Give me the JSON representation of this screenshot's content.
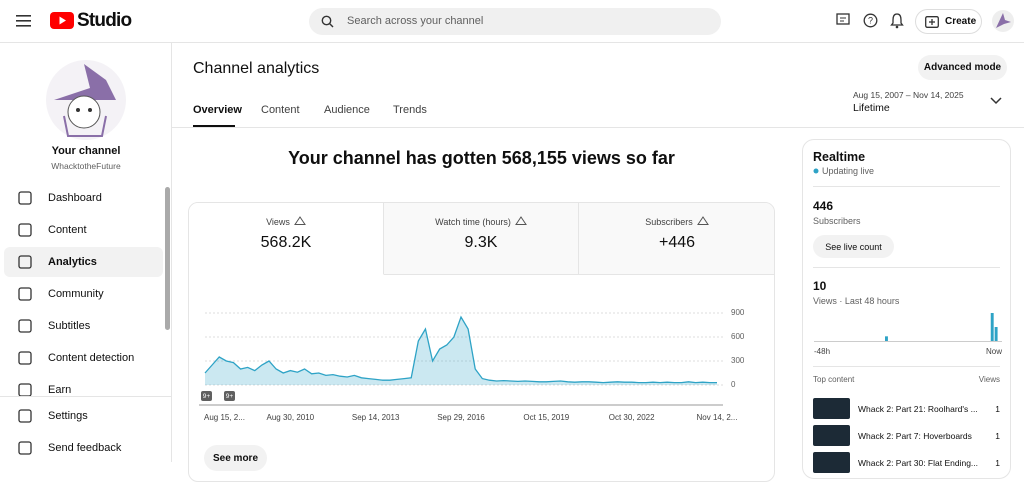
{
  "header": {
    "logo": "Studio",
    "search_placeholder": "Search across your channel",
    "create": "Create"
  },
  "sidebar": {
    "channel_title": "Your channel",
    "channel_name": "WhacktotheFuture",
    "nav": [
      "Dashboard",
      "Content",
      "Analytics",
      "Community",
      "Subtitles",
      "Content detection",
      "Earn"
    ],
    "footer_nav": [
      "Settings",
      "Send feedback"
    ]
  },
  "page": {
    "title": "Channel analytics",
    "advanced_mode": "Advanced mode",
    "tabs": [
      "Overview",
      "Content",
      "Audience",
      "Trends"
    ],
    "date_range": "Aug 15, 2007 – Nov 14, 2025",
    "period": "Lifetime",
    "headline": "Your channel has gotten 568,155 views so far",
    "metrics": [
      {
        "label": "Views",
        "value": "568.2K"
      },
      {
        "label": "Watch time (hours)",
        "value": "9.3K"
      },
      {
        "label": "Subscribers",
        "value": "+446"
      }
    ],
    "see_more": "See more"
  },
  "realtime": {
    "title": "Realtime",
    "status": "Updating live",
    "subscribers": 446,
    "subscribers_label": "Subscribers",
    "see_live_count": "See live count",
    "views": 10,
    "views_label": "Views · Last 48 hours",
    "top_content": "Top content",
    "views_header": "Views",
    "top_items": [
      {
        "title": "Whack 2: Part 21: Roolhard's ...",
        "views": 1
      },
      {
        "title": "Whack 2: Part 7: Hoverboards",
        "views": 1
      },
      {
        "title": "Whack 2: Part 30: Flat Ending...",
        "views": 1
      }
    ]
  },
  "chart_data": [
    {
      "type": "area",
      "color": "#2ea3c6",
      "categories": [
        "Aug 15, 2...",
        null,
        null,
        null,
        null,
        null,
        null,
        null,
        null,
        null,
        null,
        null,
        "Aug 30, 2010",
        null,
        null,
        null,
        null,
        null,
        null,
        null,
        null,
        null,
        null,
        null,
        "Sep 14, 2013",
        null,
        null,
        null,
        null,
        null,
        null,
        null,
        null,
        null,
        null,
        null,
        "Sep 29, 2016",
        null,
        null,
        null,
        null,
        null,
        null,
        null,
        null,
        null,
        null,
        null,
        "Oct 15, 2019",
        null,
        null,
        null,
        null,
        null,
        null,
        null,
        null,
        null,
        null,
        null,
        "Oct 30, 2022",
        null,
        null,
        null,
        null,
        null,
        null,
        null,
        null,
        null,
        null,
        null,
        "Nov 14, 2..."
      ],
      "values": [
        150,
        250,
        350,
        300,
        280,
        200,
        220,
        180,
        250,
        300,
        200,
        150,
        180,
        160,
        200,
        140,
        150,
        120,
        130,
        110,
        100,
        120,
        90,
        80,
        70,
        60,
        60,
        70,
        80,
        90,
        550,
        700,
        300,
        450,
        500,
        600,
        850,
        700,
        200,
        80,
        60,
        50,
        55,
        50,
        45,
        50,
        45,
        40,
        40,
        45,
        50,
        40,
        35,
        40,
        40,
        35,
        30,
        35,
        40,
        35,
        35,
        30,
        30,
        35,
        30,
        35,
        30,
        30,
        40,
        30,
        35,
        30,
        30
      ],
      "ylim": [
        0,
        900
      ],
      "yticks": [
        0,
        300,
        600,
        900
      ],
      "grid": true,
      "annotations": [
        "9+",
        "9+"
      ]
    },
    {
      "type": "bar",
      "color": "#2ea3c6",
      "categories": [
        "-48h",
        null,
        null,
        null,
        null,
        null,
        null,
        null,
        null,
        null,
        null,
        null,
        null,
        null,
        null,
        null,
        null,
        null,
        null,
        null,
        null,
        null,
        null,
        null,
        null,
        null,
        null,
        null,
        null,
        null,
        null,
        null,
        null,
        null,
        null,
        null,
        null,
        null,
        null,
        null,
        null,
        null,
        null,
        null,
        null,
        null,
        null,
        "Now"
      ],
      "values": [
        0,
        0,
        0,
        0,
        0,
        0,
        0,
        0,
        0,
        0,
        0,
        0,
        0,
        0,
        0,
        0,
        0,
        0,
        1,
        0,
        0,
        0,
        0,
        0,
        0,
        0,
        0,
        0,
        0,
        0,
        0,
        0,
        0,
        0,
        0,
        0,
        0,
        0,
        0,
        0,
        0,
        0,
        0,
        0,
        0,
        6,
        3,
        0
      ]
    }
  ]
}
